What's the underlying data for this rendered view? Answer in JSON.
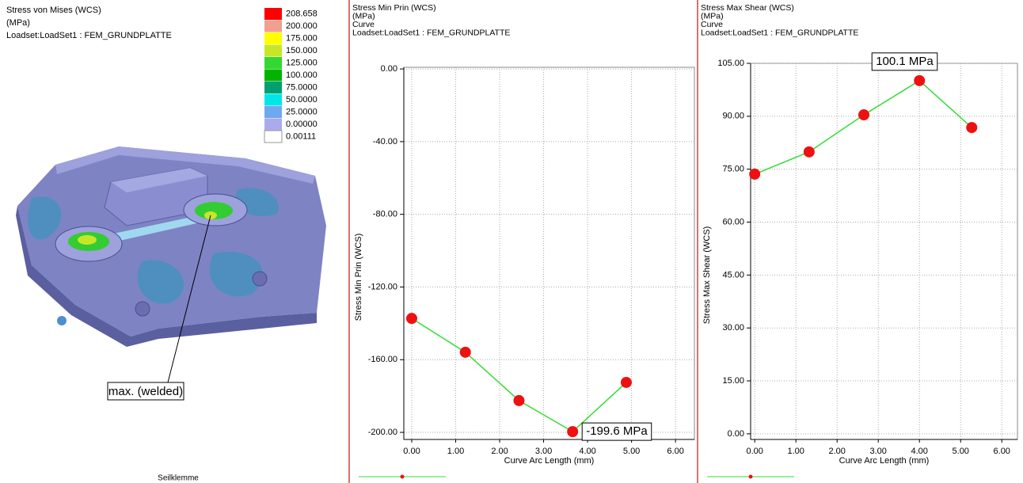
{
  "fringe_panel": {
    "title": "Stress von Mises (WCS)",
    "unit": "(MPa)",
    "loadset": "Loadset:LoadSet1 :  FEM_GRUNDPLATTE",
    "legend": [
      {
        "label": "208.658",
        "color": "#ff0000"
      },
      {
        "label": "200.000",
        "color": "#f0a090"
      },
      {
        "label": "175.000",
        "color": "#ffff00"
      },
      {
        "label": "150.000",
        "color": "#c8e628"
      },
      {
        "label": "125.000",
        "color": "#33d933"
      },
      {
        "label": "100.000",
        "color": "#00b400"
      },
      {
        "label": "75.0000",
        "color": "#00a070"
      },
      {
        "label": "50.0000",
        "color": "#00e6e6"
      },
      {
        "label": "25.0000",
        "color": "#70a8f0"
      },
      {
        "label": "0.00000",
        "color": "#aaaaee"
      },
      {
        "label": "0.00111",
        "color": "#ffffff"
      }
    ],
    "annotation": "max. (welded)",
    "caption": "Seilklemme"
  },
  "chart_data": [
    {
      "type": "line",
      "title": "Stress Min Prin (WCS)",
      "unit": "(MPa)",
      "subtitle": "Curve",
      "loadset": "Loadset:LoadSet1 :  FEM_GRUNDPLATTE",
      "x_label": "Curve Arc Length (mm)",
      "y_label": "Stress Min Prin (WCS)",
      "x": [
        0,
        1.22,
        2.44,
        3.66,
        4.88
      ],
      "series": [
        {
          "color": "#33dd33",
          "marker_color": "#ee1111",
          "values": [
            -137.3,
            -155.9,
            -182.5,
            -199.6,
            -172.5
          ]
        }
      ],
      "annotation": "-199.6 MPa",
      "xlim": [
        -0.18,
        6.43
      ],
      "xticks": [
        {
          "value": 0,
          "label": "0.00"
        },
        {
          "value": 1,
          "label": "1.00"
        },
        {
          "value": 2,
          "label": "2.00"
        },
        {
          "value": 3,
          "label": "3.00"
        },
        {
          "value": 4,
          "label": "4.00"
        },
        {
          "value": 5,
          "label": "5.00"
        },
        {
          "value": 6,
          "label": "6.00"
        }
      ],
      "ylim": [
        -203.9,
        0.9
      ],
      "yticks": [
        {
          "value": 0,
          "label": "0.00"
        },
        {
          "value": -40,
          "label": "-40.00"
        },
        {
          "value": -80,
          "label": "-80.00"
        },
        {
          "value": -120,
          "label": "-120.00"
        },
        {
          "value": -160,
          "label": "-160.00"
        },
        {
          "value": -200,
          "label": "-200.00"
        }
      ],
      "grid": true
    },
    {
      "type": "line",
      "title": "Stress Max Shear (WCS)",
      "unit": "(MPa)",
      "subtitle": "Curve",
      "loadset": "Loadset:LoadSet1 :  FEM_GRUNDPLATTE",
      "x_label": "Curve Arc Length (mm)",
      "y_label": "Stress Max Shear (WCS)",
      "x": [
        0,
        1.32,
        2.65,
        4.0,
        5.27
      ],
      "series": [
        {
          "color": "#33dd33",
          "marker_color": "#ee1111",
          "values": [
            73.6,
            79.9,
            90.4,
            100.1,
            86.8
          ]
        }
      ],
      "annotation": "100.1 MPa",
      "xlim": [
        -0.1,
        6.38
      ],
      "xticks": [
        {
          "value": 0,
          "label": "0.00"
        },
        {
          "value": 1,
          "label": "1.00"
        },
        {
          "value": 2,
          "label": "2.00"
        },
        {
          "value": 3,
          "label": "3.00"
        },
        {
          "value": 4,
          "label": "4.00"
        },
        {
          "value": 5,
          "label": "5.00"
        },
        {
          "value": 6,
          "label": "6.00"
        }
      ],
      "ylim": [
        -1.6,
        105
      ],
      "yticks": [
        {
          "value": 0,
          "label": "0.00"
        },
        {
          "value": 15,
          "label": "15.00"
        },
        {
          "value": 30,
          "label": "30.00"
        },
        {
          "value": 45,
          "label": "45.00"
        },
        {
          "value": 60,
          "label": "60.00"
        },
        {
          "value": 75,
          "label": "75.00"
        },
        {
          "value": 90,
          "label": "90.00"
        },
        {
          "value": 105,
          "label": "105.00"
        }
      ],
      "grid": true
    }
  ]
}
